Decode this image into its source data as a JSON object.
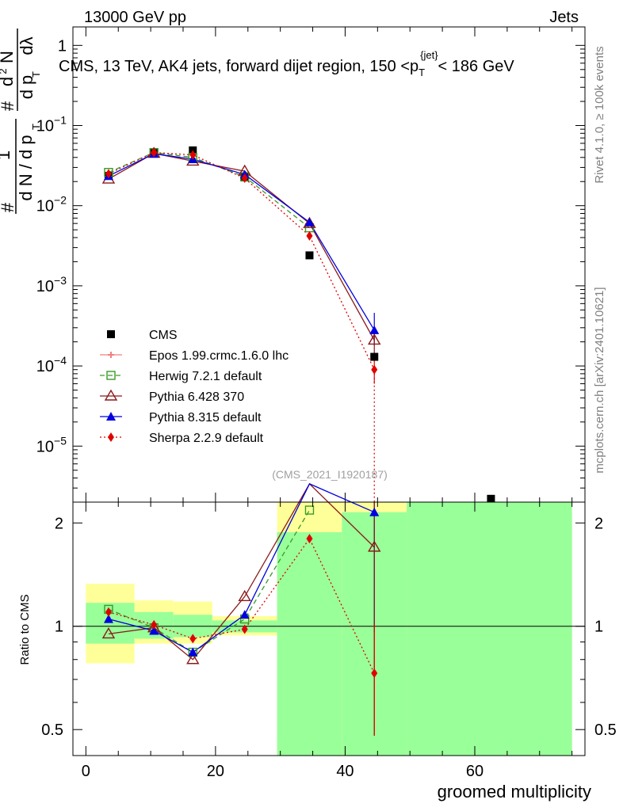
{
  "header": {
    "left": "13000 GeV pp",
    "right": "Jets"
  },
  "side": {
    "rivet": "Rivet 4.1.0, ≥ 100k events",
    "mcplots": "mcplots.cern.ch [arXiv:2401.10621]"
  },
  "ylabel_main": "1/(dN/dpT) d²N/(dpT dλ)",
  "chart_data": [
    {
      "type": "line",
      "title": "CMS, 13 TeV, AK4 jets, forward dijet region, 150 <p_T^{jet}< 186 GeV",
      "title_parts": {
        "before": "CMS, 13 TeV, AK4 jets, forward dijet region, 150 <p",
        "sub": "T",
        "sup": "{jet}",
        "after": "< 186 GeV"
      },
      "watermark": "(CMS_2021_I1920187)",
      "xlabel": "groomed multiplicity",
      "yscale": "log",
      "xlim": [
        -2,
        77
      ],
      "ylim": [
        2e-06,
        1.7
      ],
      "ytick_labels": [
        "10⁻⁵",
        "10⁻⁴",
        "10⁻³",
        "10⁻²",
        "10⁻¹",
        "1"
      ],
      "ytick_values": [
        1e-05,
        0.0001,
        0.001,
        0.01,
        0.1,
        1
      ],
      "x": [
        3.5,
        10.5,
        16.5,
        24.5,
        34.5,
        44.5,
        62.5
      ],
      "legend_placement": "lower-left",
      "series": [
        {
          "name": "CMS",
          "color": "#000000",
          "marker": "square",
          "values": [
            0.0235,
            0.0455,
            0.049,
            0.0225,
            0.0024,
            0.00013,
            2.2e-06
          ]
        },
        {
          "name": "Epos 1.99.crmc.1.6.0 lhc",
          "color": "#f08080",
          "marker": "cross",
          "dash": "",
          "values": [
            null,
            null,
            null,
            null,
            null,
            null,
            null
          ]
        },
        {
          "name": "Herwig 7.2.1 default",
          "color": "#3a9a28",
          "marker": "open-square",
          "dash": "6,4",
          "values": [
            0.026,
            0.046,
            0.04,
            0.023,
            0.0053,
            null,
            null
          ]
        },
        {
          "name": "Pythia 6.428 370",
          "color": "#8b1a1a",
          "marker": "open-triangle",
          "dash": "",
          "values": [
            0.0215,
            0.045,
            0.036,
            0.027,
            0.006,
            0.00021,
            null
          ]
        },
        {
          "name": "Pythia 8.315 default",
          "color": "#0000e0",
          "marker": "triangle",
          "dash": "",
          "values": [
            0.0235,
            0.0445,
            0.038,
            0.0245,
            0.0062,
            0.00028,
            null
          ]
        },
        {
          "name": "Sherpa 2.2.9 default",
          "color": "#e00000",
          "marker": "diamond",
          "dash": "2,3",
          "values": [
            0.025,
            0.046,
            0.043,
            0.022,
            0.0042,
            9e-05,
            null
          ]
        }
      ]
    },
    {
      "type": "line",
      "title": "Ratio to CMS",
      "xlabel": "groomed multiplicity",
      "ylabel": "Ratio to CMS",
      "yscale": "log",
      "ylim": [
        0.42,
        2.3
      ],
      "ytick_values": [
        0.5,
        1,
        2
      ],
      "ytick_labels": [
        "0.5",
        "1",
        "2"
      ],
      "xtick_values": [
        0,
        20,
        40,
        60
      ],
      "xtick_labels": [
        "0",
        "20",
        "40",
        "60"
      ],
      "x": [
        3.5,
        10.5,
        16.5,
        24.5,
        34.5,
        44.5
      ],
      "bands": [
        {
          "x0": 0,
          "x1": 7.5,
          "yellow": [
            0.78,
            1.33
          ],
          "green": [
            0.89,
            1.17
          ]
        },
        {
          "x0": 7.5,
          "x1": 13.5,
          "yellow": [
            0.89,
            1.19
          ],
          "green": [
            0.92,
            1.1
          ]
        },
        {
          "x0": 13.5,
          "x1": 19.5,
          "yellow": [
            0.89,
            1.18
          ],
          "green": [
            0.93,
            1.08
          ]
        },
        {
          "x0": 19.5,
          "x1": 29.5,
          "yellow": [
            0.94,
            1.07
          ],
          "green": [
            0.96,
            1.04
          ]
        },
        {
          "x0": 29.5,
          "x1": 39.5,
          "yellow": [
            0.42,
            2.3
          ],
          "green": [
            0.42,
            1.88
          ]
        },
        {
          "x0": 39.5,
          "x1": 49.5,
          "yellow": [
            0.42,
            2.3
          ],
          "green": [
            0.42,
            2.15
          ]
        },
        {
          "x0": 49.5,
          "x1": 75,
          "yellow": [
            0.42,
            2.3
          ],
          "green": [
            0.42,
            2.3
          ]
        }
      ],
      "series": [
        {
          "name": "Herwig 7.2.1 default",
          "color": "#3a9a28",
          "marker": "open-square",
          "dash": "6,4",
          "values": [
            1.12,
            0.99,
            0.84,
            1.05,
            2.18,
            null
          ]
        },
        {
          "name": "Pythia 6.428 370",
          "color": "#8b1a1a",
          "marker": "open-triangle",
          "dash": "",
          "values": [
            0.95,
            0.99,
            0.8,
            1.22,
            2.6,
            1.7
          ]
        },
        {
          "name": "Pythia 8.315 default",
          "color": "#0000e0",
          "marker": "triangle",
          "dash": "",
          "values": [
            1.05,
            0.97,
            0.84,
            1.08,
            2.6,
            2.15
          ]
        },
        {
          "name": "Sherpa 2.2.9 default",
          "color": "#e00000",
          "marker": "diamond",
          "dash": "2,3",
          "values": [
            1.1,
            1.01,
            0.92,
            0.98,
            1.8,
            0.73
          ]
        }
      ]
    }
  ]
}
